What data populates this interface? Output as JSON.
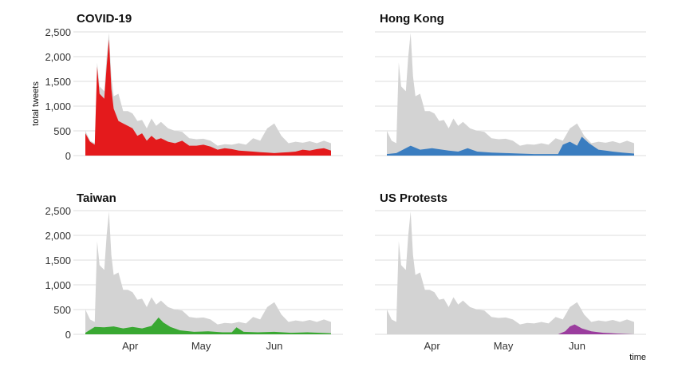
{
  "chart_data": {
    "type": "area",
    "ylabel": "total tweets",
    "xlabel": "time",
    "ylim": [
      0,
      2500
    ],
    "yticks": [
      0,
      500,
      1000,
      1500,
      2000,
      2500
    ],
    "ytick_labels": [
      "0",
      "500",
      "1,000",
      "1,500",
      "2,000",
      "2,500"
    ],
    "xlim": [
      "2020-03-13",
      "2020-06-25"
    ],
    "xticks": [
      {
        "date": "2020-04-01",
        "label": "Apr"
      },
      {
        "date": "2020-05-01",
        "label": "May"
      },
      {
        "date": "2020-06-01",
        "label": "Jun"
      }
    ],
    "grid": true,
    "total_color": "#d3d3d3",
    "total": {
      "x": [
        "2020-03-13",
        "2020-03-15",
        "2020-03-17",
        "2020-03-18",
        "2020-03-19",
        "2020-03-21",
        "2020-03-22",
        "2020-03-23",
        "2020-03-24",
        "2020-03-25",
        "2020-03-27",
        "2020-03-29",
        "2020-03-31",
        "2020-04-02",
        "2020-04-04",
        "2020-04-06",
        "2020-04-08",
        "2020-04-10",
        "2020-04-12",
        "2020-04-14",
        "2020-04-17",
        "2020-04-20",
        "2020-04-23",
        "2020-04-26",
        "2020-04-29",
        "2020-05-02",
        "2020-05-05",
        "2020-05-08",
        "2020-05-11",
        "2020-05-14",
        "2020-05-17",
        "2020-05-20",
        "2020-05-23",
        "2020-05-26",
        "2020-05-29",
        "2020-06-01",
        "2020-06-04",
        "2020-06-07",
        "2020-06-10",
        "2020-06-13",
        "2020-06-16",
        "2020-06-19",
        "2020-06-22",
        "2020-06-25"
      ],
      "y": [
        500,
        300,
        250,
        1880,
        1400,
        1300,
        2000,
        2480,
        1600,
        1200,
        1250,
        900,
        900,
        850,
        700,
        720,
        550,
        750,
        600,
        680,
        550,
        500,
        480,
        350,
        330,
        340,
        300,
        200,
        230,
        220,
        250,
        220,
        350,
        300,
        550,
        650,
        400,
        250,
        280,
        260,
        290,
        250,
        300,
        250
      ]
    },
    "panels": [
      {
        "title": "COVID-19",
        "color": "#e41a1c",
        "x": [
          "2020-03-13",
          "2020-03-15",
          "2020-03-17",
          "2020-03-18",
          "2020-03-19",
          "2020-03-21",
          "2020-03-22",
          "2020-03-23",
          "2020-03-24",
          "2020-03-25",
          "2020-03-27",
          "2020-03-29",
          "2020-03-31",
          "2020-04-02",
          "2020-04-04",
          "2020-04-06",
          "2020-04-08",
          "2020-04-10",
          "2020-04-12",
          "2020-04-14",
          "2020-04-17",
          "2020-04-20",
          "2020-04-23",
          "2020-04-26",
          "2020-04-29",
          "2020-05-02",
          "2020-05-05",
          "2020-05-08",
          "2020-05-11",
          "2020-05-14",
          "2020-05-17",
          "2020-05-20",
          "2020-05-23",
          "2020-05-26",
          "2020-05-29",
          "2020-06-01",
          "2020-06-04",
          "2020-06-07",
          "2020-06-10",
          "2020-06-13",
          "2020-06-16",
          "2020-06-19",
          "2020-06-22",
          "2020-06-25"
        ],
        "y": [
          450,
          280,
          220,
          1800,
          1250,
          1150,
          1800,
          2350,
          1350,
          950,
          700,
          650,
          600,
          550,
          400,
          450,
          300,
          400,
          320,
          350,
          280,
          250,
          300,
          200,
          200,
          220,
          180,
          120,
          150,
          130,
          100,
          90,
          80,
          70,
          60,
          50,
          60,
          70,
          80,
          120,
          100,
          130,
          150,
          100
        ]
      },
      {
        "title": "Hong Kong",
        "color": "#3a7dc0",
        "x": [
          "2020-03-13",
          "2020-03-17",
          "2020-03-23",
          "2020-03-27",
          "2020-04-01",
          "2020-04-08",
          "2020-04-12",
          "2020-04-16",
          "2020-04-20",
          "2020-04-26",
          "2020-05-02",
          "2020-05-08",
          "2020-05-14",
          "2020-05-20",
          "2020-05-24",
          "2020-05-26",
          "2020-05-29",
          "2020-06-01",
          "2020-06-03",
          "2020-06-06",
          "2020-06-10",
          "2020-06-16",
          "2020-06-20",
          "2020-06-25"
        ],
        "y": [
          30,
          50,
          200,
          120,
          150,
          100,
          80,
          150,
          80,
          60,
          50,
          40,
          30,
          30,
          30,
          220,
          280,
          200,
          380,
          250,
          120,
          80,
          60,
          40
        ]
      },
      {
        "title": "Taiwan",
        "color": "#39a832",
        "x": [
          "2020-03-13",
          "2020-03-17",
          "2020-03-21",
          "2020-03-25",
          "2020-03-29",
          "2020-04-02",
          "2020-04-06",
          "2020-04-10",
          "2020-04-13",
          "2020-04-15",
          "2020-04-18",
          "2020-04-22",
          "2020-04-28",
          "2020-05-04",
          "2020-05-10",
          "2020-05-14",
          "2020-05-16",
          "2020-05-19",
          "2020-05-25",
          "2020-06-01",
          "2020-06-08",
          "2020-06-15",
          "2020-06-25"
        ],
        "y": [
          30,
          150,
          140,
          160,
          120,
          150,
          120,
          170,
          340,
          240,
          150,
          80,
          50,
          60,
          40,
          40,
          140,
          50,
          40,
          50,
          30,
          40,
          20
        ]
      },
      {
        "title": "US Protests",
        "color": "#9b3d9e",
        "x": [
          "2020-03-13",
          "2020-05-24",
          "2020-05-27",
          "2020-05-29",
          "2020-05-31",
          "2020-06-03",
          "2020-06-07",
          "2020-06-12",
          "2020-06-18",
          "2020-06-25"
        ],
        "y": [
          0,
          0,
          60,
          160,
          200,
          120,
          60,
          30,
          15,
          0
        ]
      }
    ]
  }
}
